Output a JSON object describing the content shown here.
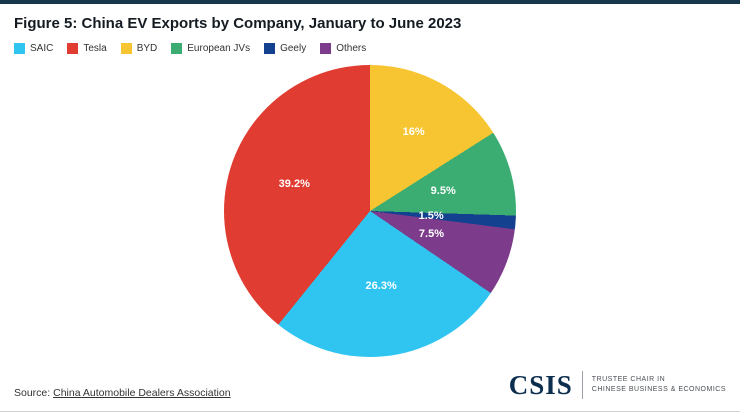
{
  "theme": {
    "top_bar": "#17374c",
    "logo_color": "#0b2e4e"
  },
  "header": {
    "title": "Figure 5: China EV Exports by Company, January to June 2023"
  },
  "legend": {
    "items": [
      {
        "label": "SAIC",
        "color": "#2fc5f0"
      },
      {
        "label": "Tesla",
        "color": "#e03c31"
      },
      {
        "label": "BYD",
        "color": "#f7c531"
      },
      {
        "label": "European JVs",
        "color": "#3bad72"
      },
      {
        "label": "Geely",
        "color": "#14418f"
      },
      {
        "label": "Others",
        "color": "#7d3c8b"
      }
    ]
  },
  "chart_data": {
    "type": "pie",
    "title": "Figure 5: China EV Exports by Company, January to June 2023",
    "start_angle_deg": 0,
    "direction": "clockwise",
    "legend_position": "top-left",
    "slices": [
      {
        "label": "BYD",
        "value": 16,
        "display": "16%",
        "color": "#f7c531",
        "label_r": 0.62
      },
      {
        "label": "European JVs",
        "value": 9.5,
        "display": "9.5%",
        "color": "#3bad72",
        "label_r": 0.52
      },
      {
        "label": "Geely",
        "value": 1.5,
        "display": "1.5%",
        "color": "#14418f",
        "label_r": 0.42
      },
      {
        "label": "Others",
        "value": 7.5,
        "display": "7.5%",
        "color": "#7d3c8b",
        "label_r": 0.45
      },
      {
        "label": "SAIC",
        "value": 26.3,
        "display": "26.3%",
        "color": "#2fc5f0",
        "label_r": 0.52
      },
      {
        "label": "Tesla",
        "value": 39.2,
        "display": "39.2%",
        "color": "#e03c31",
        "label_r": 0.55
      }
    ]
  },
  "footer": {
    "source_prefix": "Source: ",
    "source_link": "China Automobile Dealers Association",
    "logo": {
      "name": "CSIS",
      "line1": "TRUSTEE CHAIR IN",
      "line2": "CHINESE BUSINESS & ECONOMICS"
    }
  }
}
